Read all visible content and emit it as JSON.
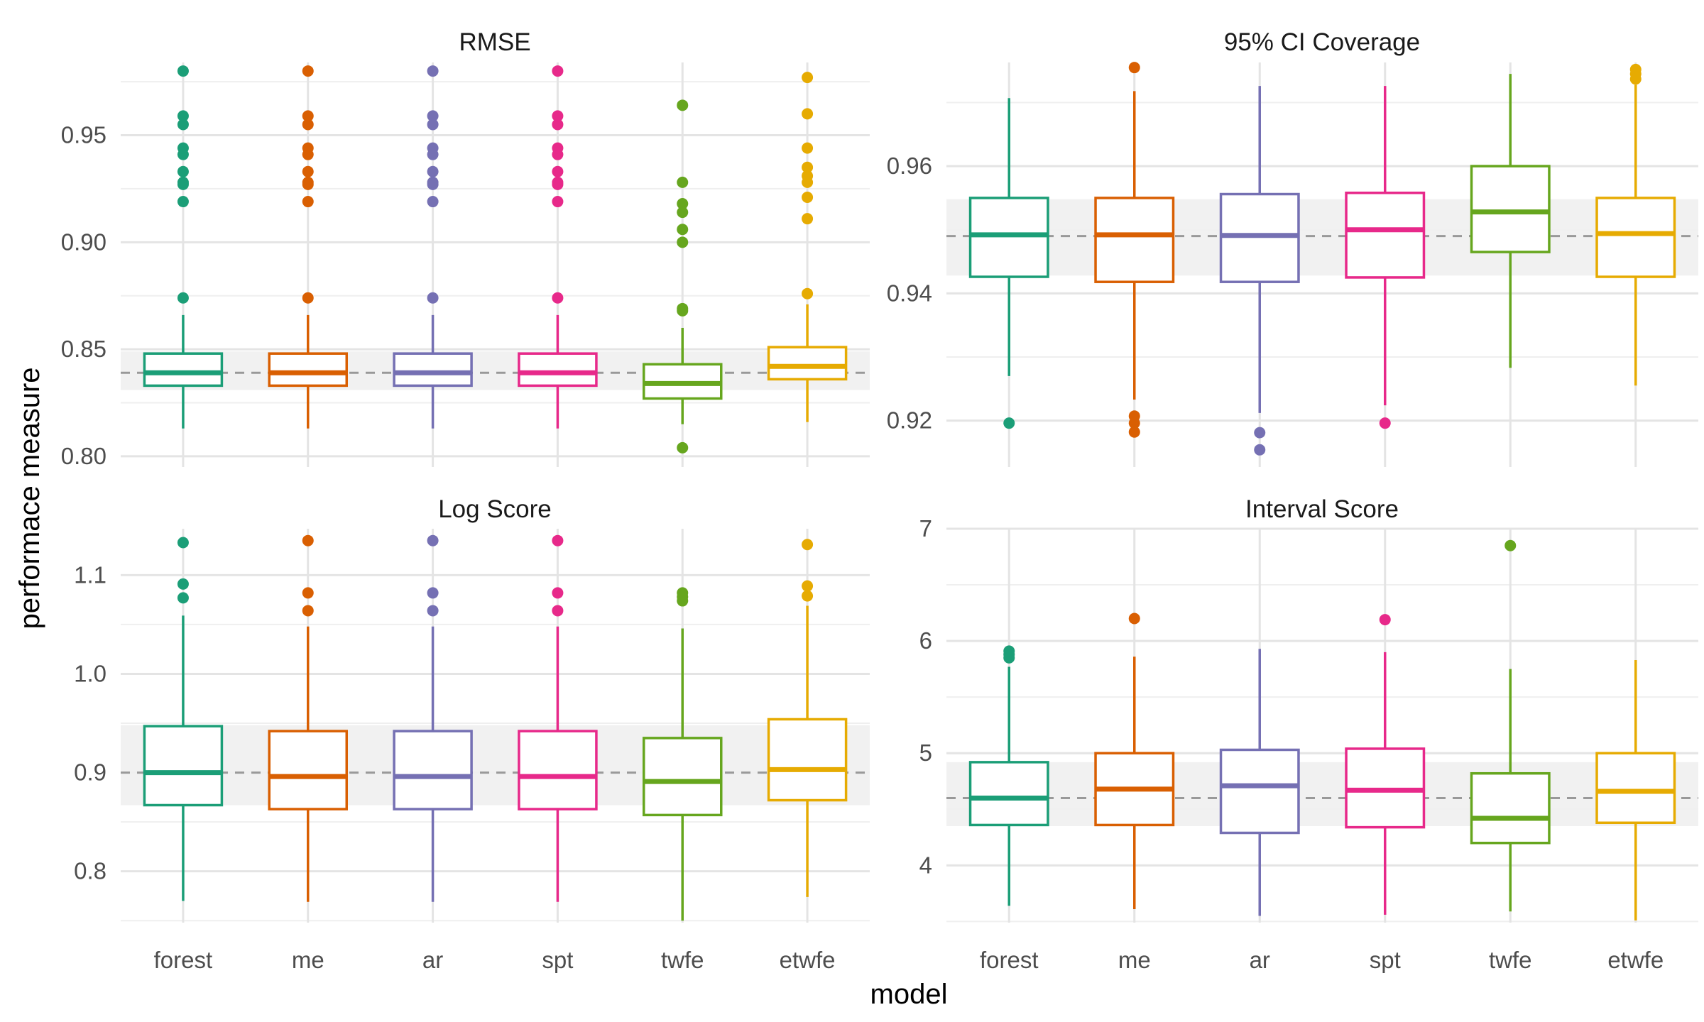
{
  "chart_data": {
    "type": "boxplot",
    "layout": "facet-grid-2x2",
    "xlabel": "model",
    "ylabel": "performace measure",
    "categories": [
      "forest",
      "me",
      "ar",
      "spt",
      "twfe",
      "etwfe"
    ],
    "colors": {
      "forest": "#1b9e77",
      "me": "#d95f02",
      "ar": "#7570b3",
      "spt": "#e7298a",
      "twfe": "#66a61e",
      "etwfe": "#e6ab02"
    },
    "reference_color": "#999999",
    "band_color": "#f0f0f0",
    "grid": true,
    "legend": "none",
    "panels": [
      {
        "title": "RMSE",
        "ylim": [
          0.795,
          0.984
        ],
        "yticks": [
          "0.80",
          "0.85",
          "0.90",
          "0.95"
        ],
        "reference_line": 0.839,
        "band": [
          0.831,
          0.849
        ],
        "boxes": [
          {
            "model": "forest",
            "whisker_low": 0.813,
            "q1": 0.833,
            "median": 0.839,
            "q3": 0.848,
            "whisker_high": 0.866,
            "outliers": [
              0.874,
              0.919,
              0.927,
              0.928,
              0.933,
              0.941,
              0.944,
              0.955,
              0.959,
              0.98
            ]
          },
          {
            "model": "me",
            "whisker_low": 0.813,
            "q1": 0.833,
            "median": 0.839,
            "q3": 0.848,
            "whisker_high": 0.866,
            "outliers": [
              0.874,
              0.919,
              0.927,
              0.928,
              0.933,
              0.941,
              0.944,
              0.955,
              0.959,
              0.98
            ]
          },
          {
            "model": "ar",
            "whisker_low": 0.813,
            "q1": 0.833,
            "median": 0.839,
            "q3": 0.848,
            "whisker_high": 0.866,
            "outliers": [
              0.874,
              0.919,
              0.927,
              0.928,
              0.933,
              0.941,
              0.944,
              0.955,
              0.959,
              0.98
            ]
          },
          {
            "model": "spt",
            "whisker_low": 0.813,
            "q1": 0.833,
            "median": 0.839,
            "q3": 0.848,
            "whisker_high": 0.866,
            "outliers": [
              0.874,
              0.919,
              0.927,
              0.928,
              0.933,
              0.941,
              0.944,
              0.955,
              0.959,
              0.98
            ]
          },
          {
            "model": "twfe",
            "whisker_low": 0.815,
            "q1": 0.827,
            "median": 0.834,
            "q3": 0.843,
            "whisker_high": 0.86,
            "outliers": [
              0.804,
              0.868,
              0.869,
              0.9,
              0.906,
              0.914,
              0.918,
              0.928,
              0.964
            ]
          },
          {
            "model": "etwfe",
            "whisker_low": 0.816,
            "q1": 0.836,
            "median": 0.842,
            "q3": 0.851,
            "whisker_high": 0.871,
            "outliers": [
              0.876,
              0.911,
              0.921,
              0.928,
              0.931,
              0.935,
              0.944,
              0.96,
              0.977
            ]
          }
        ]
      },
      {
        "title": "95% CI Coverage",
        "ylim": [
          0.9127,
          0.9763
        ],
        "yticks": [
          "0.92",
          "0.94",
          "0.96"
        ],
        "reference_line": 0.949,
        "band": [
          0.9428,
          0.9548
        ],
        "boxes": [
          {
            "model": "forest",
            "whisker_low": 0.927,
            "q1": 0.9426,
            "median": 0.9492,
            "q3": 0.955,
            "whisker_high": 0.9707,
            "outliers": [
              0.9196
            ]
          },
          {
            "model": "me",
            "whisker_low": 0.9233,
            "q1": 0.9418,
            "median": 0.9492,
            "q3": 0.955,
            "whisker_high": 0.9718,
            "outliers": [
              0.9182,
              0.9196,
              0.9207,
              0.9755
            ]
          },
          {
            "model": "ar",
            "whisker_low": 0.9212,
            "q1": 0.9418,
            "median": 0.9491,
            "q3": 0.9556,
            "whisker_high": 0.9726,
            "outliers": [
              0.9154,
              0.9181
            ]
          },
          {
            "model": "spt",
            "whisker_low": 0.9224,
            "q1": 0.9425,
            "median": 0.95,
            "q3": 0.9558,
            "whisker_high": 0.9726,
            "outliers": [
              0.9196
            ]
          },
          {
            "model": "twfe",
            "whisker_low": 0.9283,
            "q1": 0.9465,
            "median": 0.9528,
            "q3": 0.96,
            "whisker_high": 0.9745,
            "outliers": []
          },
          {
            "model": "etwfe",
            "whisker_low": 0.9255,
            "q1": 0.9426,
            "median": 0.9494,
            "q3": 0.955,
            "whisker_high": 0.9728,
            "outliers": [
              0.9737,
              0.9745,
              0.9752
            ]
          }
        ]
      },
      {
        "title": "Log Score",
        "ylim": [
          0.748,
          1.147
        ],
        "yticks": [
          "0.8",
          "0.9",
          "1.0",
          "1.1"
        ],
        "reference_line": 0.9,
        "band": [
          0.867,
          0.948
        ],
        "boxes": [
          {
            "model": "forest",
            "whisker_low": 0.77,
            "q1": 0.867,
            "median": 0.9,
            "q3": 0.947,
            "whisker_high": 1.059,
            "outliers": [
              1.077,
              1.091,
              1.133
            ]
          },
          {
            "model": "me",
            "whisker_low": 0.769,
            "q1": 0.863,
            "median": 0.896,
            "q3": 0.942,
            "whisker_high": 1.048,
            "outliers": [
              1.064,
              1.082,
              1.135
            ]
          },
          {
            "model": "ar",
            "whisker_low": 0.769,
            "q1": 0.863,
            "median": 0.896,
            "q3": 0.942,
            "whisker_high": 1.048,
            "outliers": [
              1.064,
              1.082,
              1.135
            ]
          },
          {
            "model": "spt",
            "whisker_low": 0.769,
            "q1": 0.863,
            "median": 0.896,
            "q3": 0.942,
            "whisker_high": 1.048,
            "outliers": [
              1.064,
              1.082,
              1.135
            ]
          },
          {
            "model": "twfe",
            "whisker_low": 0.75,
            "q1": 0.857,
            "median": 0.891,
            "q3": 0.935,
            "whisker_high": 1.046,
            "outliers": [
              1.074,
              1.078,
              1.082
            ]
          },
          {
            "model": "etwfe",
            "whisker_low": 0.774,
            "q1": 0.872,
            "median": 0.903,
            "q3": 0.954,
            "whisker_high": 1.069,
            "outliers": [
              1.079,
              1.089,
              1.131
            ]
          }
        ]
      },
      {
        "title": "Interval Score",
        "ylim": [
          3.49,
          7.0
        ],
        "yticks": [
          "4",
          "5",
          "6",
          "7"
        ],
        "reference_line": 4.6,
        "band": [
          4.35,
          4.92
        ],
        "boxes": [
          {
            "model": "forest",
            "whisker_low": 3.64,
            "q1": 4.36,
            "median": 4.6,
            "q3": 4.92,
            "whisker_high": 5.77,
            "outliers": [
              5.85,
              5.88,
              5.91
            ]
          },
          {
            "model": "me",
            "whisker_low": 3.61,
            "q1": 4.36,
            "median": 4.68,
            "q3": 5.0,
            "whisker_high": 5.86,
            "outliers": [
              6.2
            ]
          },
          {
            "model": "ar",
            "whisker_low": 3.55,
            "q1": 4.29,
            "median": 4.71,
            "q3": 5.03,
            "whisker_high": 5.93,
            "outliers": []
          },
          {
            "model": "spt",
            "whisker_low": 3.56,
            "q1": 4.34,
            "median": 4.67,
            "q3": 5.04,
            "whisker_high": 5.9,
            "outliers": [
              6.19
            ]
          },
          {
            "model": "twfe",
            "whisker_low": 3.59,
            "q1": 4.2,
            "median": 4.42,
            "q3": 4.82,
            "whisker_high": 5.75,
            "outliers": [
              6.85
            ]
          },
          {
            "model": "etwfe",
            "whisker_low": 3.51,
            "q1": 4.38,
            "median": 4.66,
            "q3": 5.0,
            "whisker_high": 5.83,
            "outliers": []
          }
        ]
      }
    ]
  }
}
